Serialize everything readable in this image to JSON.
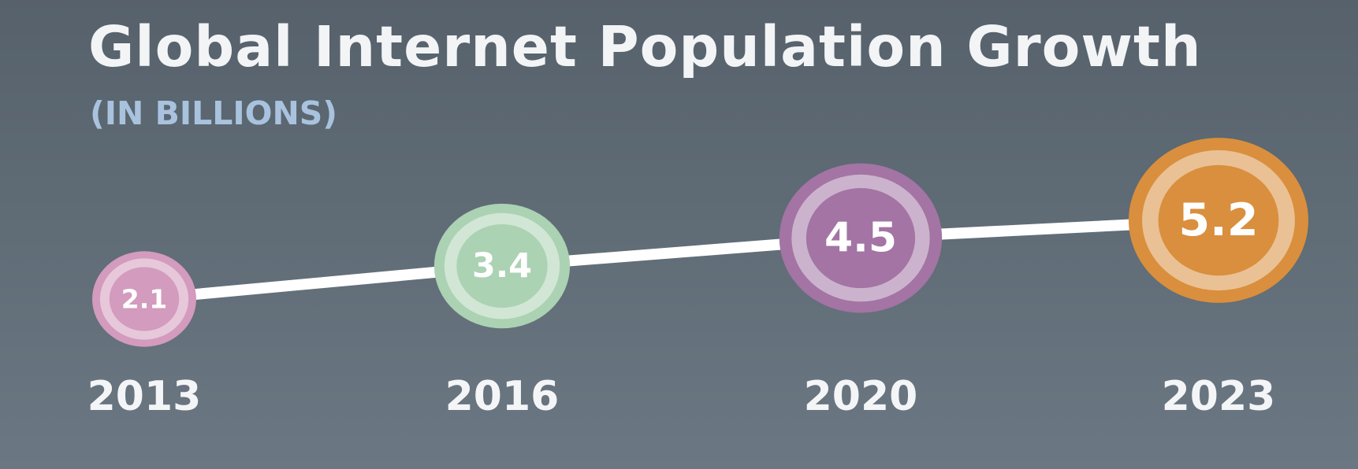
{
  "chart_data": {
    "type": "line",
    "title": "Global Internet Population Growth",
    "subtitle": "(IN BILLIONS)",
    "xlabel": "",
    "ylabel": "",
    "categories": [
      "2013",
      "2016",
      "2020",
      "2023"
    ],
    "values": [
      2.1,
      3.4,
      4.5,
      5.2
    ],
    "data_labels": [
      "2.1",
      "3.4",
      "4.5",
      "5.2"
    ],
    "point_colors": [
      "#d39bbd",
      "#abd2b3",
      "#a374a4",
      "#d98f3d"
    ],
    "line_color": "#ffffff",
    "grid": false,
    "legend": "none"
  }
}
